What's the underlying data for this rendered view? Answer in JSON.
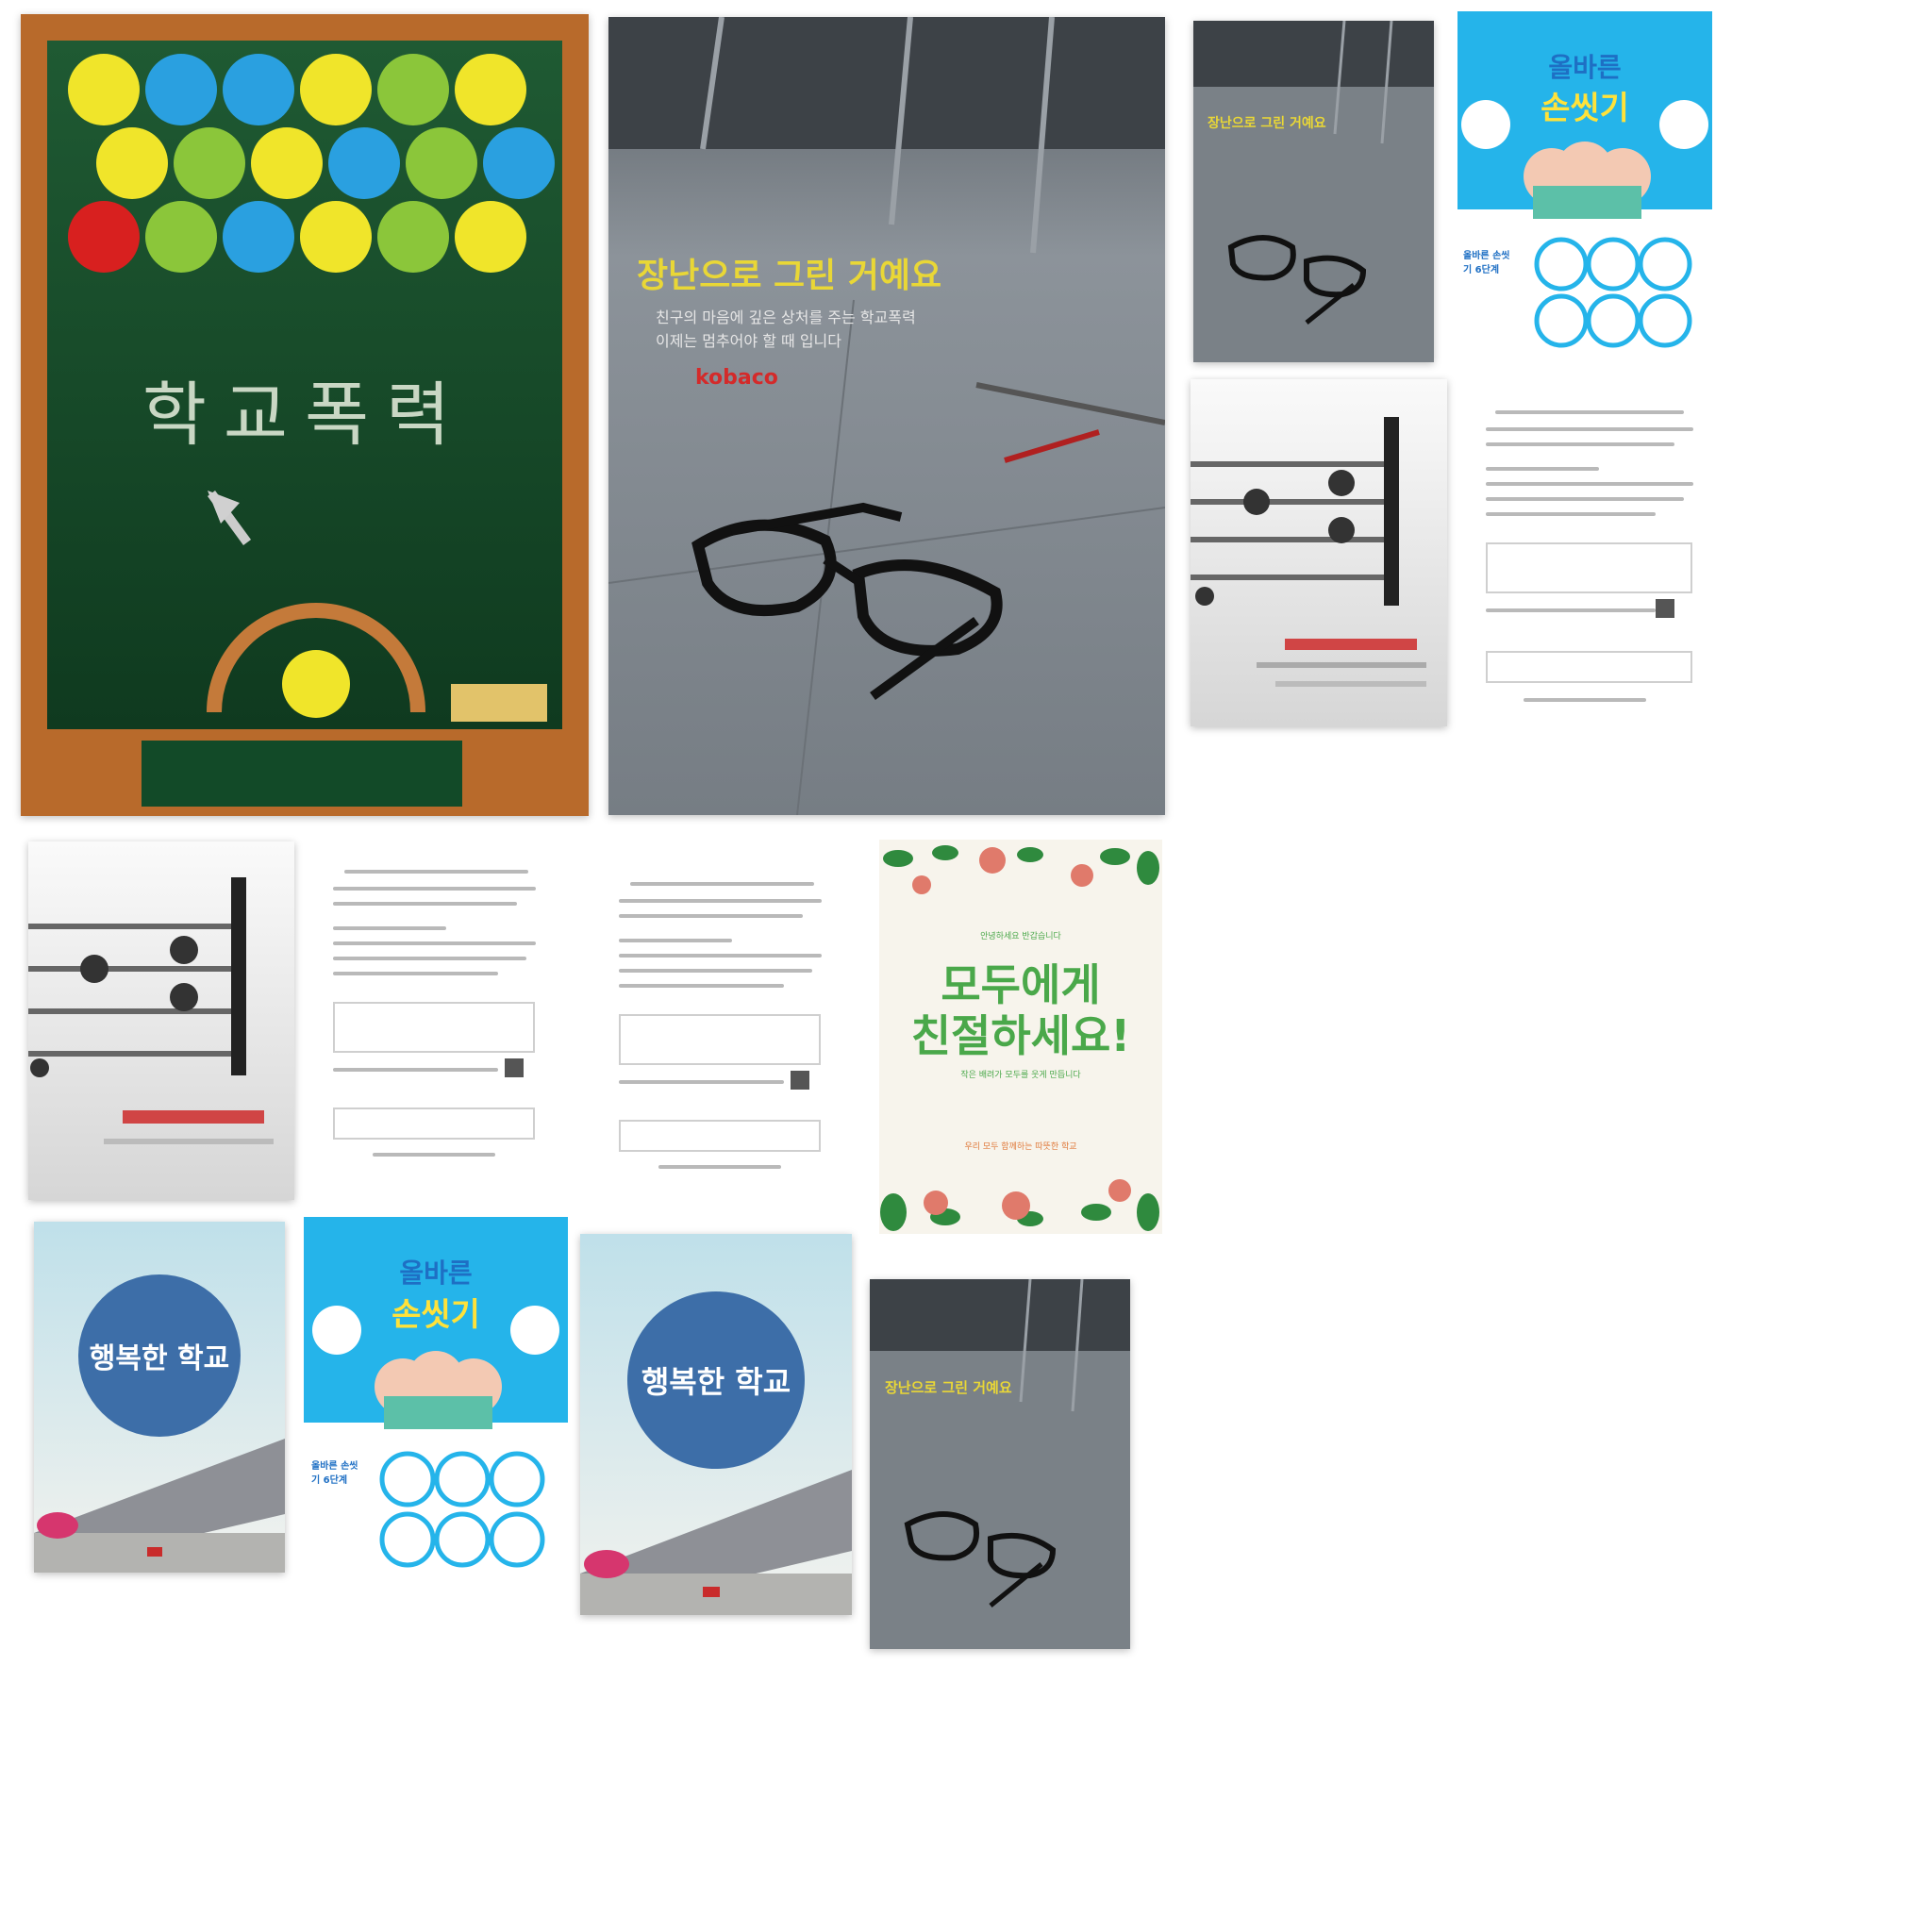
{
  "posters": {
    "school_violence": {
      "title": "학교폭력",
      "subtitle": "장난으로 그린 거예요",
      "headline": "장난으로 그린 거예요",
      "caption_line1": "친구의 마음에 깊은 상처를 주는 학교폭력",
      "caption_line2": "이제는 멈추어야 할 때 입니다",
      "brand": "kobaco"
    },
    "kindness": {
      "top_line": "안녕하세요 반갑습니다",
      "title_line1": "모두에게",
      "title_line2": "친절하세요!",
      "sub_line": "작은 배려가 모두를 웃게 만듭니다",
      "footer_line": "우리 모두 함께하는 따뜻한 학교"
    },
    "happy_school": {
      "title": "행복한 학교"
    },
    "handwash": {
      "title_line1": "올바른",
      "title_line2": "손씻기",
      "side_text": "올바른 손씻기 6단계"
    }
  },
  "colors": {
    "chalkboard": "#1f5a33",
    "wood": "#b86a2b",
    "sky": "#25b4ea",
    "kind_green": "#4aa84a",
    "happy_blue": "#3d6ea8"
  }
}
